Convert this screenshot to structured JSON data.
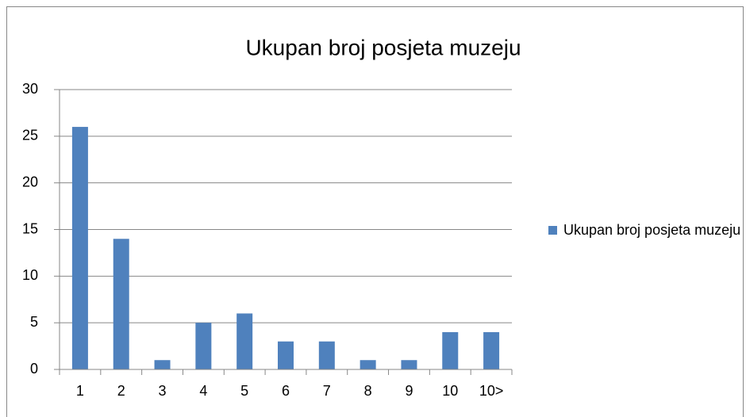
{
  "chart_data": {
    "type": "bar",
    "title": "Ukupan broj posjeta muzeju",
    "categories": [
      "1",
      "2",
      "3",
      "4",
      "5",
      "6",
      "7",
      "8",
      "9",
      "10",
      "10>"
    ],
    "series": [
      {
        "name": "Ukupan broj posjeta muzeju",
        "color": "#4f81bd",
        "values": [
          26,
          14,
          1,
          5,
          6,
          3,
          3,
          1,
          1,
          4,
          4
        ]
      }
    ],
    "ylim": [
      0,
      30
    ],
    "yticks": [
      0,
      5,
      10,
      15,
      20,
      25,
      30
    ],
    "grid": true,
    "legend": "right"
  }
}
